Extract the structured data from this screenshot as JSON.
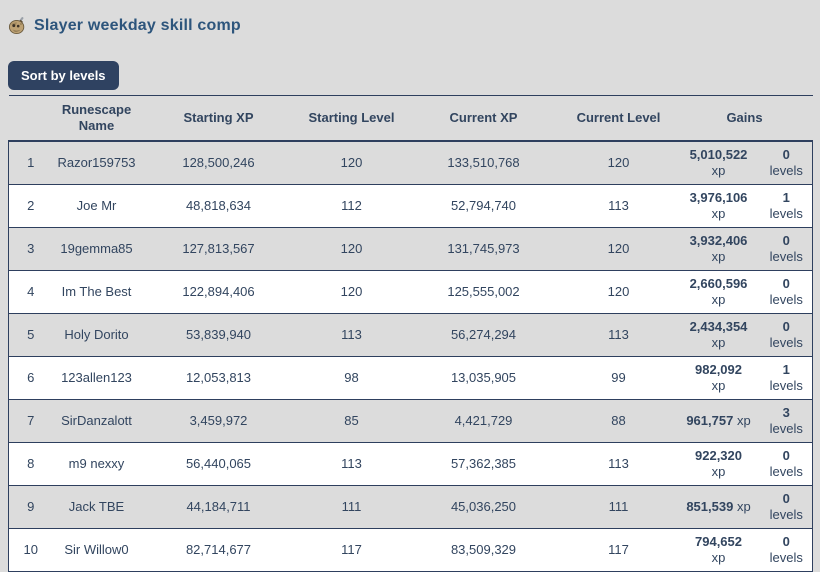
{
  "page": {
    "title": "Slayer weekday skill comp",
    "title_icon": "slayer-skill-icon",
    "sort_button_label": "Sort by levels"
  },
  "table": {
    "headers": {
      "rank": "",
      "name": "Runescape Name",
      "starting_xp": "Starting XP",
      "starting_level": "Starting Level",
      "current_xp": "Current XP",
      "current_level": "Current Level",
      "gains": "Gains"
    },
    "xp_unit": "xp",
    "levels_unit": "levels",
    "rows": [
      {
        "rank": "1",
        "name": "Razor159753",
        "starting_xp": "128,500,246",
        "starting_level": "120",
        "current_xp": "133,510,768",
        "current_level": "120",
        "gains_xp": "5,010,522",
        "gains_xp_two_lines": true,
        "gains_levels": "0"
      },
      {
        "rank": "2",
        "name": "Joe Mr",
        "starting_xp": "48,818,634",
        "starting_level": "112",
        "current_xp": "52,794,740",
        "current_level": "113",
        "gains_xp": "3,976,106",
        "gains_xp_two_lines": true,
        "gains_levels": "1"
      },
      {
        "rank": "3",
        "name": "19gemma85",
        "starting_xp": "127,813,567",
        "starting_level": "120",
        "current_xp": "131,745,973",
        "current_level": "120",
        "gains_xp": "3,932,406",
        "gains_xp_two_lines": true,
        "gains_levels": "0"
      },
      {
        "rank": "4",
        "name": "Im The Best",
        "starting_xp": "122,894,406",
        "starting_level": "120",
        "current_xp": "125,555,002",
        "current_level": "120",
        "gains_xp": "2,660,596",
        "gains_xp_two_lines": true,
        "gains_levels": "0"
      },
      {
        "rank": "5",
        "name": "Holy Dorito",
        "starting_xp": "53,839,940",
        "starting_level": "113",
        "current_xp": "56,274,294",
        "current_level": "113",
        "gains_xp": "2,434,354",
        "gains_xp_two_lines": true,
        "gains_levels": "0"
      },
      {
        "rank": "6",
        "name": "123allen123",
        "starting_xp": "12,053,813",
        "starting_level": "98",
        "current_xp": "13,035,905",
        "current_level": "99",
        "gains_xp": "982,092",
        "gains_xp_two_lines": true,
        "gains_levels": "1"
      },
      {
        "rank": "7",
        "name": "SirDanzalott",
        "starting_xp": "3,459,972",
        "starting_level": "85",
        "current_xp": "4,421,729",
        "current_level": "88",
        "gains_xp": "961,757",
        "gains_xp_two_lines": false,
        "gains_levels": "3"
      },
      {
        "rank": "8",
        "name": "m9 nexxy",
        "starting_xp": "56,440,065",
        "starting_level": "113",
        "current_xp": "57,362,385",
        "current_level": "113",
        "gains_xp": "922,320",
        "gains_xp_two_lines": true,
        "gains_levels": "0"
      },
      {
        "rank": "9",
        "name": "Jack TBE",
        "starting_xp": "44,184,711",
        "starting_level": "111",
        "current_xp": "45,036,250",
        "current_level": "111",
        "gains_xp": "851,539",
        "gains_xp_two_lines": false,
        "gains_levels": "0"
      },
      {
        "rank": "10",
        "name": "Sir Willow0",
        "starting_xp": "82,714,677",
        "starting_level": "117",
        "current_xp": "83,509,329",
        "current_level": "117",
        "gains_xp": "794,652",
        "gains_xp_two_lines": true,
        "gains_levels": "0"
      }
    ]
  },
  "colors": {
    "page_bg": "#dcdcdc",
    "row_alt": "#ffffff",
    "text": "#32455f",
    "border": "#2e3f5e",
    "accent": "#2d557c",
    "button_bg": "#2f4261",
    "button_text": "#ffffff"
  }
}
